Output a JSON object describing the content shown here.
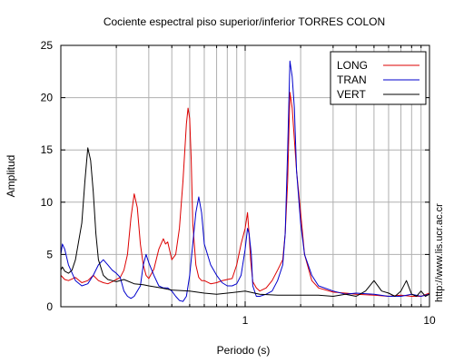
{
  "chart_data": {
    "type": "line",
    "title": "Cociente espectral piso superior/inferior  TORRES COLON",
    "xlabel": "Periodo (s)",
    "ylabel": "Amplitud",
    "x_scale": "log",
    "xlim": [
      0.1,
      10
    ],
    "ylim": [
      0,
      25
    ],
    "x_ticks": [
      1,
      10
    ],
    "x_tick_labels": [
      "1",
      "10"
    ],
    "y_ticks": [
      0,
      5,
      10,
      15,
      20,
      25
    ],
    "grid": true,
    "legend_position": "top-right",
    "side_text": "http://www.lis.ucr.ac.cr",
    "series": [
      {
        "name": "LONG",
        "color": "#dd0000",
        "x": [
          0.1,
          0.105,
          0.11,
          0.12,
          0.13,
          0.14,
          0.15,
          0.16,
          0.17,
          0.18,
          0.19,
          0.2,
          0.21,
          0.22,
          0.23,
          0.24,
          0.25,
          0.26,
          0.27,
          0.28,
          0.29,
          0.3,
          0.32,
          0.34,
          0.36,
          0.37,
          0.38,
          0.4,
          0.42,
          0.44,
          0.46,
          0.48,
          0.49,
          0.5,
          0.51,
          0.52,
          0.54,
          0.56,
          0.58,
          0.6,
          0.65,
          0.7,
          0.75,
          0.8,
          0.85,
          0.9,
          0.95,
          1.0,
          1.03,
          1.05,
          1.07,
          1.1,
          1.15,
          1.2,
          1.3,
          1.4,
          1.5,
          1.6,
          1.65,
          1.7,
          1.75,
          1.8,
          1.85,
          1.9,
          2.0,
          2.1,
          2.3,
          2.5,
          3.0,
          3.5,
          4.0,
          5.0,
          6.0,
          7.0,
          8.0,
          9.0,
          10.0
        ],
        "y": [
          3.0,
          2.6,
          2.5,
          2.8,
          2.3,
          2.5,
          3.0,
          2.5,
          2.3,
          2.2,
          2.4,
          2.6,
          2.8,
          3.5,
          5.0,
          8.5,
          10.8,
          9.5,
          6.0,
          4.0,
          3.0,
          2.7,
          3.6,
          5.5,
          6.5,
          6.0,
          6.2,
          4.5,
          5.0,
          7.5,
          12.0,
          17.5,
          19.0,
          18.0,
          14.0,
          8.0,
          4.0,
          2.8,
          2.5,
          2.5,
          2.2,
          2.3,
          2.5,
          2.6,
          2.7,
          4.0,
          6.0,
          7.5,
          9.0,
          7.0,
          4.5,
          2.4,
          1.8,
          1.5,
          1.8,
          2.5,
          3.5,
          4.5,
          7.0,
          12.0,
          20.5,
          19.0,
          16.0,
          13.0,
          9.0,
          5.0,
          2.5,
          1.8,
          1.4,
          1.3,
          1.2,
          1.1,
          1.0,
          1.1,
          1.0,
          1.0,
          1.3
        ]
      },
      {
        "name": "TRAN",
        "color": "#0000cc",
        "x": [
          0.1,
          0.102,
          0.105,
          0.11,
          0.12,
          0.13,
          0.14,
          0.15,
          0.16,
          0.17,
          0.18,
          0.19,
          0.2,
          0.21,
          0.22,
          0.23,
          0.24,
          0.25,
          0.27,
          0.28,
          0.29,
          0.3,
          0.32,
          0.34,
          0.36,
          0.38,
          0.4,
          0.42,
          0.44,
          0.46,
          0.48,
          0.5,
          0.52,
          0.54,
          0.56,
          0.58,
          0.6,
          0.65,
          0.7,
          0.75,
          0.8,
          0.85,
          0.9,
          0.95,
          1.0,
          1.03,
          1.05,
          1.08,
          1.1,
          1.15,
          1.2,
          1.3,
          1.4,
          1.5,
          1.6,
          1.65,
          1.7,
          1.75,
          1.8,
          1.85,
          1.9,
          2.0,
          2.1,
          2.3,
          2.5,
          3.0,
          3.5,
          4.0,
          5.0,
          6.0,
          7.0,
          8.0,
          9.0,
          10.0
        ],
        "y": [
          5.0,
          6.0,
          5.5,
          4.0,
          2.5,
          2.0,
          2.2,
          3.0,
          4.0,
          4.5,
          4.0,
          3.5,
          3.2,
          2.8,
          1.5,
          1.0,
          0.8,
          1.0,
          2.0,
          4.0,
          5.0,
          4.2,
          3.0,
          2.0,
          1.8,
          1.8,
          1.5,
          1.0,
          0.6,
          0.5,
          1.0,
          3.0,
          6.0,
          9.0,
          10.5,
          9.0,
          6.0,
          4.0,
          3.0,
          2.3,
          2.0,
          2.0,
          2.2,
          3.0,
          5.5,
          7.5,
          7.0,
          5.0,
          2.0,
          1.0,
          1.0,
          1.2,
          1.5,
          2.5,
          4.0,
          7.0,
          15.0,
          23.5,
          22.0,
          19.0,
          13.0,
          8.0,
          5.0,
          3.0,
          2.0,
          1.5,
          1.2,
          1.3,
          1.2,
          1.0,
          1.0,
          1.2,
          1.0,
          1.2
        ]
      },
      {
        "name": "VERT",
        "color": "#000000",
        "x": [
          0.1,
          0.102,
          0.105,
          0.11,
          0.115,
          0.12,
          0.13,
          0.135,
          0.14,
          0.145,
          0.15,
          0.155,
          0.16,
          0.17,
          0.18,
          0.19,
          0.2,
          0.22,
          0.25,
          0.28,
          0.3,
          0.35,
          0.4,
          0.5,
          0.6,
          0.7,
          0.8,
          1.0,
          1.2,
          1.5,
          2.0,
          2.5,
          3.0,
          3.5,
          4.0,
          4.5,
          5.0,
          5.5,
          6.0,
          6.5,
          7.0,
          7.5,
          8.0,
          8.5,
          9.0,
          9.5,
          10.0
        ],
        "y": [
          3.5,
          3.8,
          3.4,
          3.2,
          3.5,
          4.5,
          8.0,
          12.0,
          15.2,
          14.0,
          11.0,
          7.0,
          4.5,
          3.0,
          2.6,
          2.5,
          2.4,
          2.6,
          2.2,
          2.1,
          2.0,
          1.8,
          1.6,
          1.5,
          1.3,
          1.2,
          1.3,
          1.5,
          1.2,
          1.1,
          1.1,
          1.1,
          1.0,
          1.2,
          1.0,
          1.5,
          2.5,
          1.5,
          1.3,
          1.0,
          1.5,
          2.5,
          1.2,
          1.0,
          1.5,
          1.0,
          1.2
        ]
      }
    ]
  }
}
